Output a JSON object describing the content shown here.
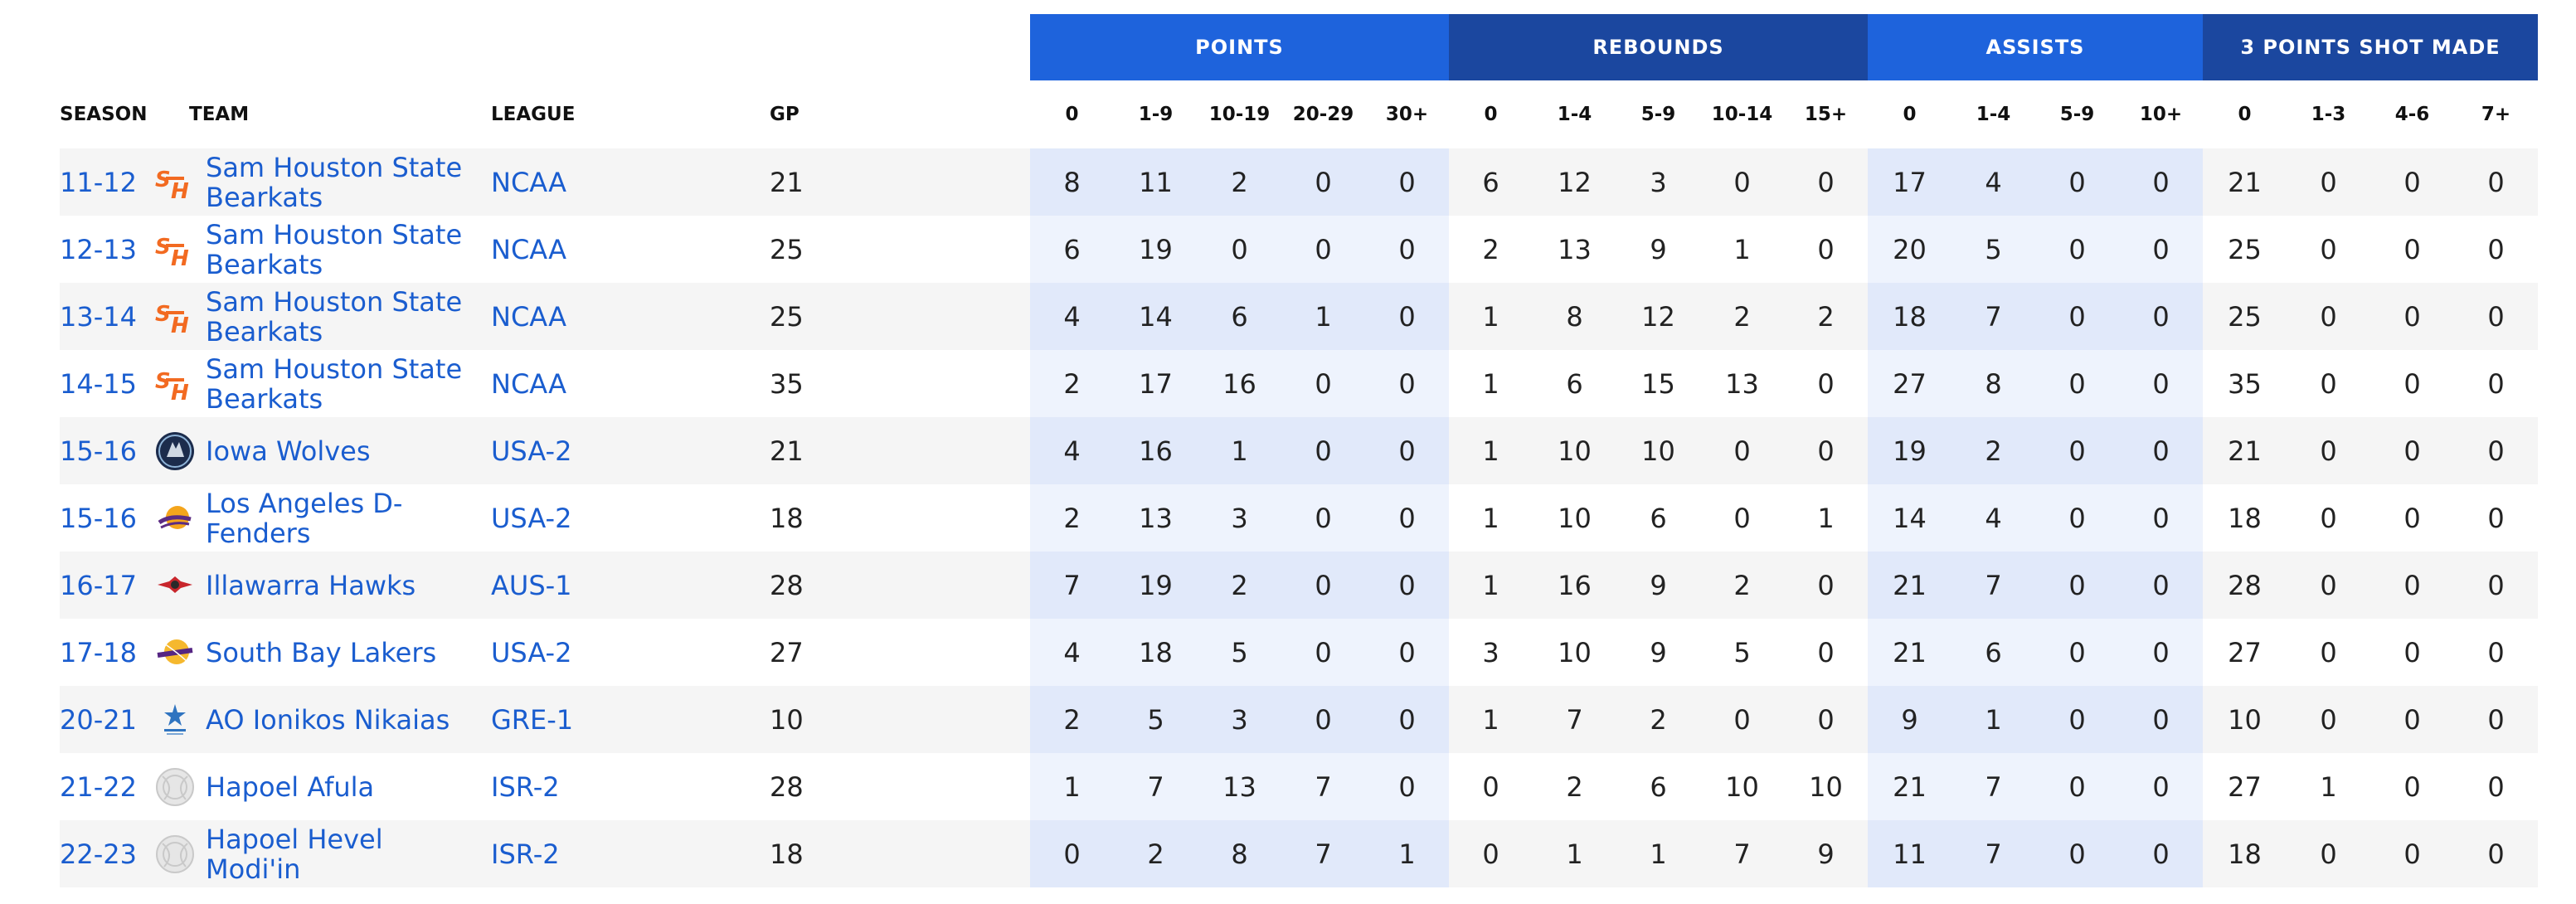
{
  "groups": {
    "points": "POINTS",
    "rebounds": "REBOUNDS",
    "assists": "ASSISTS",
    "three": "3 POINTS SHOT MADE"
  },
  "columns": {
    "season": "SEASON",
    "team": "TEAM",
    "league": "LEAGUE",
    "gp": "GP",
    "points": [
      "0",
      "1-9",
      "10-19",
      "20-29",
      "30+"
    ],
    "rebounds": [
      "0",
      "1-4",
      "5-9",
      "10-14",
      "15+"
    ],
    "assists": [
      "0",
      "1-4",
      "5-9",
      "10+"
    ],
    "three": [
      "0",
      "1-3",
      "4-6",
      "7+"
    ]
  },
  "rows": [
    {
      "season": "11-12",
      "team": "Sam Houston State Bearkats",
      "logo": "sam-houston-logo-icon",
      "league": "NCAA",
      "gp": "21",
      "points": [
        "8",
        "11",
        "2",
        "0",
        "0"
      ],
      "rebounds": [
        "6",
        "12",
        "3",
        "0",
        "0"
      ],
      "assists": [
        "17",
        "4",
        "0",
        "0"
      ],
      "three": [
        "21",
        "0",
        "0",
        "0"
      ]
    },
    {
      "season": "12-13",
      "team": "Sam Houston State Bearkats",
      "logo": "sam-houston-logo-icon",
      "league": "NCAA",
      "gp": "25",
      "points": [
        "6",
        "19",
        "0",
        "0",
        "0"
      ],
      "rebounds": [
        "2",
        "13",
        "9",
        "1",
        "0"
      ],
      "assists": [
        "20",
        "5",
        "0",
        "0"
      ],
      "three": [
        "25",
        "0",
        "0",
        "0"
      ]
    },
    {
      "season": "13-14",
      "team": "Sam Houston State Bearkats",
      "logo": "sam-houston-logo-icon",
      "league": "NCAA",
      "gp": "25",
      "points": [
        "4",
        "14",
        "6",
        "1",
        "0"
      ],
      "rebounds": [
        "1",
        "8",
        "12",
        "2",
        "2"
      ],
      "assists": [
        "18",
        "7",
        "0",
        "0"
      ],
      "three": [
        "25",
        "0",
        "0",
        "0"
      ]
    },
    {
      "season": "14-15",
      "team": "Sam Houston State Bearkats",
      "logo": "sam-houston-logo-icon",
      "league": "NCAA",
      "gp": "35",
      "points": [
        "2",
        "17",
        "16",
        "0",
        "0"
      ],
      "rebounds": [
        "1",
        "6",
        "15",
        "13",
        "0"
      ],
      "assists": [
        "27",
        "8",
        "0",
        "0"
      ],
      "three": [
        "35",
        "0",
        "0",
        "0"
      ]
    },
    {
      "season": "15-16",
      "team": "Iowa Wolves",
      "logo": "iowa-wolves-logo-icon",
      "league": "USA-2",
      "gp": "21",
      "points": [
        "4",
        "16",
        "1",
        "0",
        "0"
      ],
      "rebounds": [
        "1",
        "10",
        "10",
        "0",
        "0"
      ],
      "assists": [
        "19",
        "2",
        "0",
        "0"
      ],
      "three": [
        "21",
        "0",
        "0",
        "0"
      ]
    },
    {
      "season": "15-16",
      "team": "Los Angeles D-Fenders",
      "logo": "la-dfenders-logo-icon",
      "league": "USA-2",
      "gp": "18",
      "points": [
        "2",
        "13",
        "3",
        "0",
        "0"
      ],
      "rebounds": [
        "1",
        "10",
        "6",
        "0",
        "1"
      ],
      "assists": [
        "14",
        "4",
        "0",
        "0"
      ],
      "three": [
        "18",
        "0",
        "0",
        "0"
      ]
    },
    {
      "season": "16-17",
      "team": "Illawarra Hawks",
      "logo": "illawarra-hawks-logo-icon",
      "league": "AUS-1",
      "gp": "28",
      "points": [
        "7",
        "19",
        "2",
        "0",
        "0"
      ],
      "rebounds": [
        "1",
        "16",
        "9",
        "2",
        "0"
      ],
      "assists": [
        "21",
        "7",
        "0",
        "0"
      ],
      "three": [
        "28",
        "0",
        "0",
        "0"
      ]
    },
    {
      "season": "17-18",
      "team": "South Bay Lakers",
      "logo": "south-bay-lakers-logo-icon",
      "league": "USA-2",
      "gp": "27",
      "points": [
        "4",
        "18",
        "5",
        "0",
        "0"
      ],
      "rebounds": [
        "3",
        "10",
        "9",
        "5",
        "0"
      ],
      "assists": [
        "21",
        "6",
        "0",
        "0"
      ],
      "three": [
        "27",
        "0",
        "0",
        "0"
      ]
    },
    {
      "season": "20-21",
      "team": "AO Ionikos Nikaias",
      "logo": "ionikos-logo-icon",
      "league": "GRE-1",
      "gp": "10",
      "points": [
        "2",
        "5",
        "3",
        "0",
        "0"
      ],
      "rebounds": [
        "1",
        "7",
        "2",
        "0",
        "0"
      ],
      "assists": [
        "9",
        "1",
        "0",
        "0"
      ],
      "three": [
        "10",
        "0",
        "0",
        "0"
      ]
    },
    {
      "season": "21-22",
      "team": "Hapoel Afula",
      "logo": "default-basketball-logo-icon",
      "league": "ISR-2",
      "gp": "28",
      "points": [
        "1",
        "7",
        "13",
        "7",
        "0"
      ],
      "rebounds": [
        "0",
        "2",
        "6",
        "10",
        "10"
      ],
      "assists": [
        "21",
        "7",
        "0",
        "0"
      ],
      "three": [
        "27",
        "1",
        "0",
        "0"
      ]
    },
    {
      "season": "22-23",
      "team": "Hapoel Hevel Modi'in",
      "logo": "default-basketball-logo-icon",
      "league": "ISR-2",
      "gp": "18",
      "points": [
        "0",
        "2",
        "8",
        "7",
        "1"
      ],
      "rebounds": [
        "0",
        "1",
        "1",
        "7",
        "9"
      ],
      "assists": [
        "11",
        "7",
        "0",
        "0"
      ],
      "three": [
        "18",
        "0",
        "0",
        "0"
      ]
    }
  ],
  "colors": {
    "link": "#1a5dcf",
    "group_blue": "#1e63dc",
    "group_dark": "#1b479f"
  }
}
